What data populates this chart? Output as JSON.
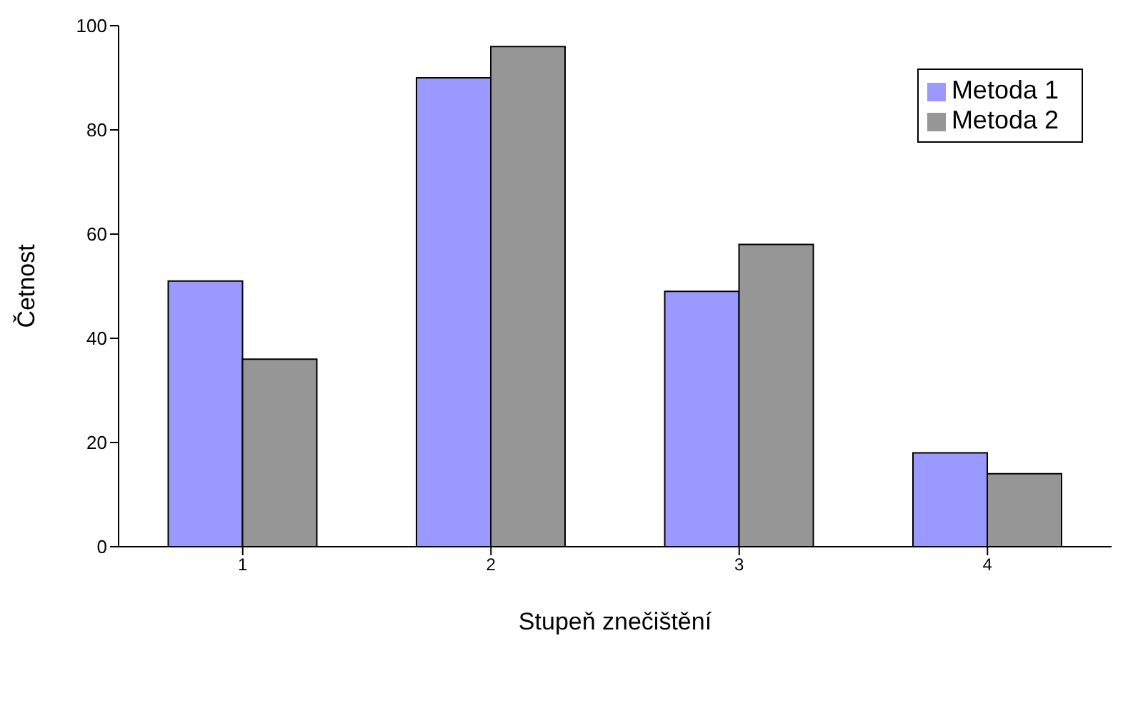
{
  "chart_data": {
    "type": "bar",
    "xlabel": "Stupeň znečištění",
    "ylabel": "Četnost",
    "categories": [
      "1",
      "2",
      "3",
      "4"
    ],
    "series": [
      {
        "name": "Metoda 1",
        "color": "#9999ff",
        "values": [
          51,
          90,
          49,
          18
        ]
      },
      {
        "name": "Metoda 2",
        "color": "#969696",
        "values": [
          36,
          96,
          58,
          14
        ]
      }
    ],
    "ylim": [
      0,
      100
    ],
    "yticks": [
      0,
      20,
      40,
      60,
      80,
      100
    ],
    "grid": false,
    "legend": "top right"
  }
}
